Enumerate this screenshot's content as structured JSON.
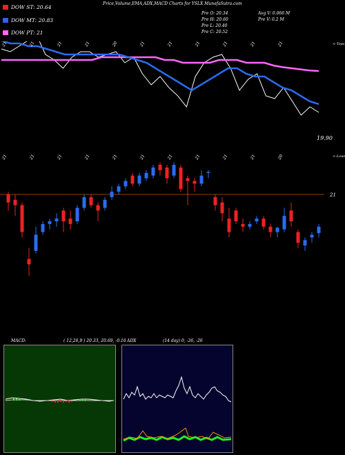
{
  "header": {
    "title": "Price,Volume,EMA,ADX,MACD Charts for YSLX  MunafaSutra.com"
  },
  "legend": [
    {
      "label": "DOW ST: 20.64",
      "color": "#ff2020"
    },
    {
      "label": "DOW MT: 20.83",
      "color": "#3060ff"
    },
    {
      "label": "DOW PT: 21",
      "color": "#ff66ff"
    }
  ],
  "stats": {
    "open": "Pre   O: 20.34",
    "high": "Pre   H: 20.60",
    "low": "Pre   L: 20.40",
    "close": "Pre   C: 20.52",
    "avg_vol": "Avg V: 0.066   M",
    "pre_vol": "Pre   V: 0.2   M"
  },
  "annotations": {
    "tops": "<-Tops",
    "lows": "<-Lows",
    "last_price": "19.90",
    "level": "21"
  },
  "top_labels": [
    "21",
    "21",
    "21",
    "21",
    "20",
    "21",
    "21",
    "21",
    "21",
    "21",
    "21"
  ],
  "low_labels": [
    "21",
    "21",
    "21",
    "21",
    "21",
    "21",
    "21",
    "21",
    "21",
    "21",
    "20"
  ],
  "colors": {
    "bull": "#2a6cf0",
    "bear": "#ee2222",
    "price_line": "#ffffff",
    "ema_short": "#2a6cf0",
    "ema_long": "#ff66ff",
    "level_line": "#8b4513",
    "macd_bg": "#063806",
    "adx_bg": "#04042e"
  },
  "macd": {
    "label": "MACD:",
    "values": "( 12,26,9 ) 20.33,  20.69,  -0.16"
  },
  "adx": {
    "label": "ADX",
    "values": "(14   day) 0,  -26,  -26"
  },
  "chart_data": {
    "type": "candlestick",
    "title": "Price,Volume,EMA,ADX,MACD Charts for YSLX",
    "close_line": [
      21.05,
      21.0,
      21.1,
      21.2,
      21.3,
      20.95,
      20.85,
      20.7,
      20.9,
      21.0,
      21.0,
      20.9,
      20.95,
      21.0,
      20.8,
      20.9,
      20.6,
      20.4,
      20.55,
      20.35,
      20.2,
      20.0,
      20.55,
      20.8,
      20.9,
      20.95,
      20.7,
      20.3,
      20.5,
      20.6,
      20.2,
      20.15,
      20.35,
      20.1,
      19.85,
      20.0,
      19.9
    ],
    "candles": [
      {
        "o": 21.0,
        "h": 21.05,
        "l": 20.7,
        "c": 20.85
      },
      {
        "o": 20.9,
        "h": 21.0,
        "l": 20.6,
        "c": 20.8
      },
      {
        "o": 20.8,
        "h": 20.85,
        "l": 20.2,
        "c": 20.3
      },
      {
        "o": 19.8,
        "h": 20.0,
        "l": 19.3,
        "c": 19.7
      },
      {
        "o": 19.95,
        "h": 20.4,
        "l": 19.9,
        "c": 20.25
      },
      {
        "o": 20.3,
        "h": 20.5,
        "l": 20.25,
        "c": 20.45
      },
      {
        "o": 20.45,
        "h": 20.55,
        "l": 20.35,
        "c": 20.5
      },
      {
        "o": 20.5,
        "h": 20.65,
        "l": 20.4,
        "c": 20.55
      },
      {
        "o": 20.7,
        "h": 20.75,
        "l": 20.3,
        "c": 20.5
      },
      {
        "o": 20.55,
        "h": 20.7,
        "l": 20.35,
        "c": 20.45
      },
      {
        "o": 20.5,
        "h": 20.8,
        "l": 20.45,
        "c": 20.75
      },
      {
        "o": 20.75,
        "h": 21.0,
        "l": 20.7,
        "c": 20.95
      },
      {
        "o": 20.95,
        "h": 21.0,
        "l": 20.75,
        "c": 20.8
      },
      {
        "o": 20.8,
        "h": 20.85,
        "l": 20.5,
        "c": 20.7
      },
      {
        "o": 20.75,
        "h": 20.95,
        "l": 20.7,
        "c": 20.9
      },
      {
        "o": 20.95,
        "h": 21.15,
        "l": 20.9,
        "c": 21.05
      },
      {
        "o": 21.05,
        "h": 21.2,
        "l": 21.0,
        "c": 21.15
      },
      {
        "o": 21.15,
        "h": 21.3,
        "l": 21.1,
        "c": 21.25
      },
      {
        "o": 21.35,
        "h": 21.4,
        "l": 21.15,
        "c": 21.2
      },
      {
        "o": 21.2,
        "h": 21.4,
        "l": 21.15,
        "c": 21.35
      },
      {
        "o": 21.3,
        "h": 21.45,
        "l": 21.25,
        "c": 21.4
      },
      {
        "o": 21.35,
        "h": 21.55,
        "l": 21.3,
        "c": 21.5
      },
      {
        "o": 21.55,
        "h": 21.6,
        "l": 21.35,
        "c": 21.45
      },
      {
        "o": 21.5,
        "h": 21.55,
        "l": 21.2,
        "c": 21.3
      },
      {
        "o": 21.35,
        "h": 21.6,
        "l": 21.3,
        "c": 21.55
      },
      {
        "o": 21.5,
        "h": 21.55,
        "l": 21.05,
        "c": 21.1
      },
      {
        "o": 21.3,
        "h": 21.35,
        "l": 20.8,
        "c": 21.25
      },
      {
        "o": 21.25,
        "h": 21.3,
        "l": 21.05,
        "c": 21.2
      },
      {
        "o": 21.2,
        "h": 21.45,
        "l": 21.15,
        "c": 21.35
      },
      {
        "o": 21.4,
        "h": 21.45,
        "l": 21.3,
        "c": 21.42
      },
      {
        "o": 20.95,
        "h": 21.0,
        "l": 20.7,
        "c": 20.8
      },
      {
        "o": 20.85,
        "h": 20.95,
        "l": 20.5,
        "c": 20.65
      },
      {
        "o": 20.55,
        "h": 20.75,
        "l": 20.2,
        "c": 20.3
      },
      {
        "o": 20.7,
        "h": 20.75,
        "l": 20.45,
        "c": 20.5
      },
      {
        "o": 20.45,
        "h": 20.55,
        "l": 20.3,
        "c": 20.4
      },
      {
        "o": 20.4,
        "h": 20.5,
        "l": 20.35,
        "c": 20.45
      },
      {
        "o": 20.5,
        "h": 20.6,
        "l": 20.45,
        "c": 20.55
      },
      {
        "o": 20.55,
        "h": 20.6,
        "l": 20.35,
        "c": 20.4
      },
      {
        "o": 20.4,
        "h": 20.45,
        "l": 20.2,
        "c": 20.3
      },
      {
        "o": 20.3,
        "h": 20.4,
        "l": 20.2,
        "c": 20.38
      },
      {
        "o": 20.35,
        "h": 20.75,
        "l": 20.3,
        "c": 20.6
      },
      {
        "o": 20.7,
        "h": 20.85,
        "l": 20.4,
        "c": 20.5
      },
      {
        "o": 20.3,
        "h": 20.35,
        "l": 20.0,
        "c": 20.1
      },
      {
        "o": 20.05,
        "h": 20.2,
        "l": 19.95,
        "c": 20.15
      },
      {
        "o": 20.2,
        "h": 20.3,
        "l": 20.1,
        "c": 20.25
      },
      {
        "o": 20.28,
        "h": 20.45,
        "l": 20.2,
        "c": 20.4
      }
    ],
    "ema_short": [
      21.2,
      21.15,
      21.15,
      21.1,
      21.1,
      21.05,
      21.0,
      20.95,
      20.95,
      20.95,
      20.95,
      20.95,
      20.95,
      20.95,
      20.9,
      20.85,
      20.8,
      20.7,
      20.6,
      20.5,
      20.4,
      20.3,
      20.4,
      20.5,
      20.6,
      20.7,
      20.7,
      20.6,
      20.55,
      20.55,
      20.45,
      20.35,
      20.3,
      20.2,
      20.1,
      20.05
    ],
    "ema_long": [
      20.85,
      20.85,
      20.85,
      20.85,
      20.85,
      20.85,
      20.85,
      20.85,
      20.85,
      20.85,
      20.85,
      20.9,
      20.9,
      20.9,
      20.9,
      20.9,
      20.9,
      20.9,
      20.85,
      20.85,
      20.8,
      20.8,
      20.8,
      20.8,
      20.85,
      20.85,
      20.85,
      20.8,
      20.8,
      20.8,
      20.75,
      20.72,
      20.7,
      20.68,
      20.66,
      20.65
    ],
    "support_level": 21
  }
}
